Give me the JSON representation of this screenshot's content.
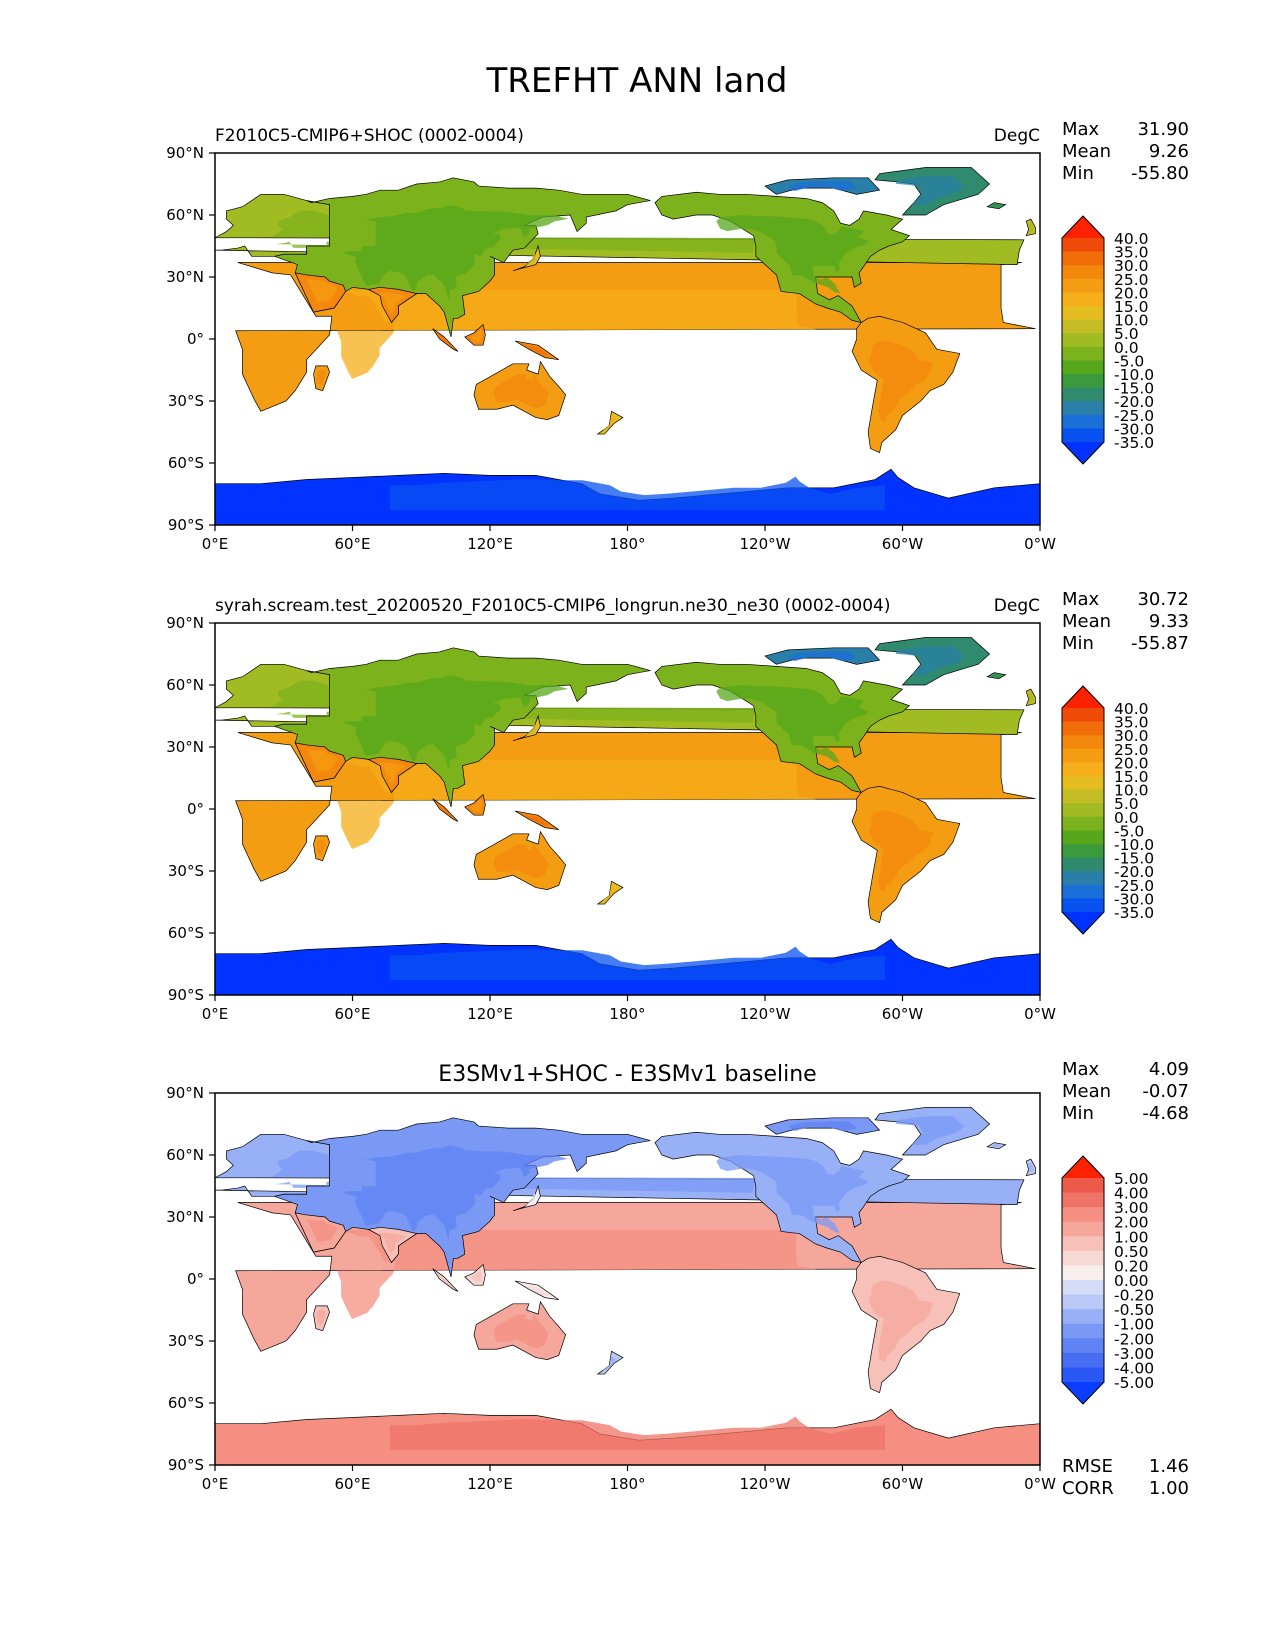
{
  "figure": {
    "title": "TREFHT ANN land"
  },
  "colors": {
    "land_scale": [
      "#0033ff",
      "#0a52f0",
      "#1b6fd8",
      "#2a7fa8",
      "#2f8a6e",
      "#3a9a3c",
      "#56a71c",
      "#7cb21b",
      "#a1bb22",
      "#c3bc25",
      "#e5bd20",
      "#f6ae1a",
      "#f59d12",
      "#f3880c",
      "#f06d0a",
      "#f04a08",
      "#ff2200"
    ],
    "diff_scale": [
      "#0a3dff",
      "#2a58f5",
      "#476ef2",
      "#5f83f3",
      "#7a99f5",
      "#97b0f6",
      "#b8c8f7",
      "#d4dcf7",
      "#eceff7",
      "#f8eeee",
      "#f8d8d4",
      "#f7c0b8",
      "#f6a79c",
      "#f48f82",
      "#ef7366",
      "#ec5a4a",
      "#ff2200"
    ]
  },
  "axes": {
    "lat_ticks": [
      "90°N",
      "60°N",
      "30°N",
      "0°",
      "30°S",
      "60°S",
      "90°S"
    ],
    "lon_ticks": [
      "0°E",
      "60°E",
      "120°E",
      "180°",
      "120°W",
      "60°W",
      "0°W"
    ]
  },
  "panels": [
    {
      "title_left": "F2010C5-CMIP6+SHOC (0002-0004)",
      "title_center": "",
      "units": "DegC",
      "scale": "land",
      "stats": {
        "max_label": "Max",
        "max": "31.90",
        "mean_label": "Mean",
        "mean": "9.26",
        "min_label": "Min",
        "min": "-55.80"
      },
      "colorbar_labels": [
        "40.0",
        "35.0",
        "30.0",
        "25.0",
        "20.0",
        "15.0",
        "10.0",
        "5.0",
        "0.0",
        "-5.0",
        "-10.0",
        "-15.0",
        "-20.0",
        "-25.0",
        "-30.0",
        "-35.0"
      ]
    },
    {
      "title_left": "syrah.scream.test_20200520_F2010C5-CMIP6_longrun.ne30_ne30 (0002-0004)",
      "title_center": "",
      "units": "DegC",
      "scale": "land",
      "stats": {
        "max_label": "Max",
        "max": "30.72",
        "mean_label": "Mean",
        "mean": "9.33",
        "min_label": "Min",
        "min": "-55.87"
      },
      "colorbar_labels": [
        "40.0",
        "35.0",
        "30.0",
        "25.0",
        "20.0",
        "15.0",
        "10.0",
        "5.0",
        "0.0",
        "-5.0",
        "-10.0",
        "-15.0",
        "-20.0",
        "-25.0",
        "-30.0",
        "-35.0"
      ]
    },
    {
      "title_left": "",
      "title_center": "E3SMv1+SHOC - E3SMv1 baseline",
      "units": "",
      "scale": "diff",
      "stats": {
        "max_label": "Max",
        "max": "4.09",
        "mean_label": "Mean",
        "mean": "-0.07",
        "min_label": "Min",
        "min": "-4.68"
      },
      "colorbar_labels": [
        "5.00",
        "4.00",
        "3.00",
        "2.00",
        "1.00",
        "0.50",
        "0.20",
        "0.00",
        "-0.20",
        "-0.50",
        "-1.00",
        "-2.00",
        "-3.00",
        "-4.00",
        "-5.00"
      ],
      "metrics": {
        "rmse_label": "RMSE",
        "rmse": "1.46",
        "corr_label": "CORR",
        "corr": "1.00"
      }
    }
  ]
}
